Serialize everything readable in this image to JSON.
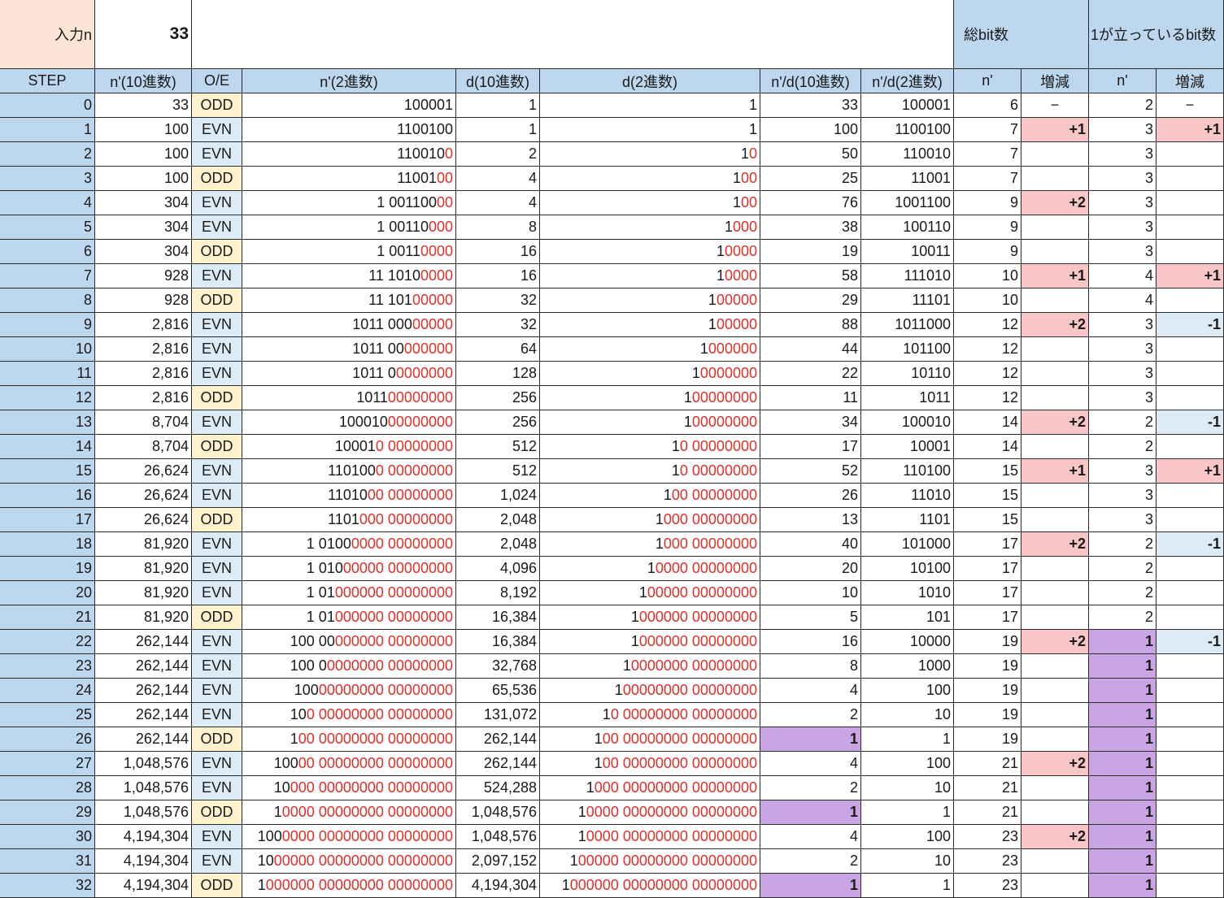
{
  "top": {
    "input_label": "入力n",
    "input_value": "33",
    "total_bits_header": "総bit数",
    "set_bits_header": "1が立っているbit数"
  },
  "headers": [
    "STEP",
    "n'(10進数)",
    "O/E",
    "n'(2進数)",
    "d(10進数)",
    "d(2進数)",
    "n'/d(10進数)",
    "n'/d(2進数)",
    "n'",
    "増減",
    "n'",
    "増減"
  ],
  "rows": [
    {
      "step": "0",
      "n10": "33",
      "oe": "ODD",
      "n2": [
        "100001",
        ""
      ],
      "d10": "1",
      "d2": [
        "1",
        ""
      ],
      "q10": "33",
      "q2": "100001",
      "tb": "6",
      "tbd": "−",
      "sb": "2",
      "sbd": "−"
    },
    {
      "step": "1",
      "n10": "100",
      "oe": "EVN",
      "n2": [
        "1100100",
        ""
      ],
      "d10": "1",
      "d2": [
        "1",
        ""
      ],
      "q10": "100",
      "q2": "1100100",
      "tb": "7",
      "tbd": "+1",
      "sb": "3",
      "sbd": "+1"
    },
    {
      "step": "2",
      "n10": "100",
      "oe": "EVN",
      "n2": [
        "110010",
        "0"
      ],
      "d10": "2",
      "d2": [
        "1",
        "0"
      ],
      "q10": "50",
      "q2": "110010",
      "tb": "7",
      "tbd": "",
      "sb": "3",
      "sbd": ""
    },
    {
      "step": "3",
      "n10": "100",
      "oe": "ODD",
      "n2": [
        "11001",
        "00"
      ],
      "d10": "4",
      "d2": [
        "1",
        "00"
      ],
      "q10": "25",
      "q2": "11001",
      "tb": "7",
      "tbd": "",
      "sb": "3",
      "sbd": ""
    },
    {
      "step": "4",
      "n10": "304",
      "oe": "EVN",
      "n2": [
        "1 001100",
        "00"
      ],
      "d10": "4",
      "d2": [
        "1",
        "00"
      ],
      "q10": "76",
      "q2": "1001100",
      "tb": "9",
      "tbd": "+2",
      "sb": "3",
      "sbd": ""
    },
    {
      "step": "5",
      "n10": "304",
      "oe": "EVN",
      "n2": [
        "1 00110",
        "000"
      ],
      "d10": "8",
      "d2": [
        "1",
        "000"
      ],
      "q10": "38",
      "q2": "100110",
      "tb": "9",
      "tbd": "",
      "sb": "3",
      "sbd": ""
    },
    {
      "step": "6",
      "n10": "304",
      "oe": "ODD",
      "n2": [
        "1 0011",
        "0000"
      ],
      "d10": "16",
      "d2": [
        "1",
        "0000"
      ],
      "q10": "19",
      "q2": "10011",
      "tb": "9",
      "tbd": "",
      "sb": "3",
      "sbd": ""
    },
    {
      "step": "7",
      "n10": "928",
      "oe": "EVN",
      "n2": [
        "11 1010",
        "0000"
      ],
      "d10": "16",
      "d2": [
        "1",
        "0000"
      ],
      "q10": "58",
      "q2": "111010",
      "tb": "10",
      "tbd": "+1",
      "sb": "4",
      "sbd": "+1"
    },
    {
      "step": "8",
      "n10": "928",
      "oe": "ODD",
      "n2": [
        "11 101",
        "00000"
      ],
      "d10": "32",
      "d2": [
        "1",
        "00000"
      ],
      "q10": "29",
      "q2": "11101",
      "tb": "10",
      "tbd": "",
      "sb": "4",
      "sbd": ""
    },
    {
      "step": "9",
      "n10": "2,816",
      "oe": "EVN",
      "n2": [
        "1011 000",
        "00000"
      ],
      "d10": "32",
      "d2": [
        "1",
        "00000"
      ],
      "q10": "88",
      "q2": "1011000",
      "tb": "12",
      "tbd": "+2",
      "sb": "3",
      "sbd": "-1"
    },
    {
      "step": "10",
      "n10": "2,816",
      "oe": "EVN",
      "n2": [
        "1011 00",
        "000000"
      ],
      "d10": "64",
      "d2": [
        "1",
        "000000"
      ],
      "q10": "44",
      "q2": "101100",
      "tb": "12",
      "tbd": "",
      "sb": "3",
      "sbd": ""
    },
    {
      "step": "11",
      "n10": "2,816",
      "oe": "EVN",
      "n2": [
        "1011 0",
        "0000000"
      ],
      "d10": "128",
      "d2": [
        "1",
        "0000000"
      ],
      "q10": "22",
      "q2": "10110",
      "tb": "12",
      "tbd": "",
      "sb": "3",
      "sbd": ""
    },
    {
      "step": "12",
      "n10": "2,816",
      "oe": "ODD",
      "n2": [
        "1011 ",
        "00000000"
      ],
      "d10": "256",
      "d2": [
        "1 ",
        "00000000"
      ],
      "q10": "11",
      "q2": "1011",
      "tb": "12",
      "tbd": "",
      "sb": "3",
      "sbd": ""
    },
    {
      "step": "13",
      "n10": "8,704",
      "oe": "EVN",
      "n2": [
        "100010 ",
        "00000000"
      ],
      "d10": "256",
      "d2": [
        "1 ",
        "00000000"
      ],
      "q10": "34",
      "q2": "100010",
      "tb": "14",
      "tbd": "+2",
      "sb": "2",
      "sbd": "-1"
    },
    {
      "step": "14",
      "n10": "8,704",
      "oe": "ODD",
      "n2": [
        "10001",
        "0 00000000"
      ],
      "d10": "512",
      "d2": [
        "1",
        "0 00000000"
      ],
      "q10": "17",
      "q2": "10001",
      "tb": "14",
      "tbd": "",
      "sb": "2",
      "sbd": ""
    },
    {
      "step": "15",
      "n10": "26,624",
      "oe": "EVN",
      "n2": [
        "110100",
        "0 00000000"
      ],
      "d10": "512",
      "d2": [
        "1",
        "0 00000000"
      ],
      "q10": "52",
      "q2": "110100",
      "tb": "15",
      "tbd": "+1",
      "sb": "3",
      "sbd": "+1"
    },
    {
      "step": "16",
      "n10": "26,624",
      "oe": "EVN",
      "n2": [
        "11010",
        "00 00000000"
      ],
      "d10": "1,024",
      "d2": [
        "1",
        "00 00000000"
      ],
      "q10": "26",
      "q2": "11010",
      "tb": "15",
      "tbd": "",
      "sb": "3",
      "sbd": ""
    },
    {
      "step": "17",
      "n10": "26,624",
      "oe": "ODD",
      "n2": [
        "1101",
        "000 00000000"
      ],
      "d10": "2,048",
      "d2": [
        "1",
        "000 00000000"
      ],
      "q10": "13",
      "q2": "1101",
      "tb": "15",
      "tbd": "",
      "sb": "3",
      "sbd": ""
    },
    {
      "step": "18",
      "n10": "81,920",
      "oe": "EVN",
      "n2": [
        "1 0100",
        "0000 00000000"
      ],
      "d10": "2,048",
      "d2": [
        "1",
        "000 00000000"
      ],
      "q10": "40",
      "q2": "101000",
      "tb": "17",
      "tbd": "+2",
      "sb": "2",
      "sbd": "-1"
    },
    {
      "step": "19",
      "n10": "81,920",
      "oe": "EVN",
      "n2": [
        "1 010",
        "00000 00000000"
      ],
      "d10": "4,096",
      "d2": [
        "1",
        "0000 00000000"
      ],
      "q10": "20",
      "q2": "10100",
      "tb": "17",
      "tbd": "",
      "sb": "2",
      "sbd": ""
    },
    {
      "step": "20",
      "n10": "81,920",
      "oe": "EVN",
      "n2": [
        "1 01",
        "000000 00000000"
      ],
      "d10": "8,192",
      "d2": [
        "1",
        "00000 00000000"
      ],
      "q10": "10",
      "q2": "1010",
      "tb": "17",
      "tbd": "",
      "sb": "2",
      "sbd": ""
    },
    {
      "step": "21",
      "n10": "81,920",
      "oe": "ODD",
      "n2": [
        "1 01",
        "000000 00000000"
      ],
      "d10": "16,384",
      "d2": [
        "1",
        "000000 00000000"
      ],
      "q10": "5",
      "q2": "101",
      "tb": "17",
      "tbd": "",
      "sb": "2",
      "sbd": ""
    },
    {
      "step": "22",
      "n10": "262,144",
      "oe": "EVN",
      "n2": [
        "100 00",
        "000000 00000000"
      ],
      "d10": "16,384",
      "d2": [
        "1",
        "000000 00000000"
      ],
      "q10": "16",
      "q2": "10000",
      "tb": "19",
      "tbd": "+2",
      "sb": "1",
      "sbd": "-1"
    },
    {
      "step": "23",
      "n10": "262,144",
      "oe": "EVN",
      "n2": [
        "100 0",
        "0000000 00000000"
      ],
      "d10": "32,768",
      "d2": [
        "1",
        "0000000 00000000"
      ],
      "q10": "8",
      "q2": "1000",
      "tb": "19",
      "tbd": "",
      "sb": "1",
      "sbd": ""
    },
    {
      "step": "24",
      "n10": "262,144",
      "oe": "EVN",
      "n2": [
        "100 ",
        "00000000 00000000"
      ],
      "d10": "65,536",
      "d2": [
        "1 ",
        "00000000 00000000"
      ],
      "q10": "4",
      "q2": "100",
      "tb": "19",
      "tbd": "",
      "sb": "1",
      "sbd": ""
    },
    {
      "step": "25",
      "n10": "262,144",
      "oe": "EVN",
      "n2": [
        "10",
        "0 00000000 00000000"
      ],
      "d10": "131,072",
      "d2": [
        "1",
        "0 00000000 00000000"
      ],
      "q10": "2",
      "q2": "10",
      "tb": "19",
      "tbd": "",
      "sb": "1",
      "sbd": ""
    },
    {
      "step": "26",
      "n10": "262,144",
      "oe": "ODD",
      "n2": [
        "1",
        "00 00000000 00000000"
      ],
      "d10": "262,144",
      "d2": [
        "1",
        "00 00000000 00000000"
      ],
      "q10": "1",
      "q2": "1",
      "tb": "19",
      "tbd": "",
      "sb": "1",
      "sbd": ""
    },
    {
      "step": "27",
      "n10": "1,048,576",
      "oe": "EVN",
      "n2": [
        "100",
        "00 00000000 00000000"
      ],
      "d10": "262,144",
      "d2": [
        "1",
        "00 00000000 00000000"
      ],
      "q10": "4",
      "q2": "100",
      "tb": "21",
      "tbd": "+2",
      "sb": "1",
      "sbd": ""
    },
    {
      "step": "28",
      "n10": "1,048,576",
      "oe": "EVN",
      "n2": [
        "10",
        "000 00000000 00000000"
      ],
      "d10": "524,288",
      "d2": [
        "1",
        "000 00000000 00000000"
      ],
      "q10": "2",
      "q2": "10",
      "tb": "21",
      "tbd": "",
      "sb": "1",
      "sbd": ""
    },
    {
      "step": "29",
      "n10": "1,048,576",
      "oe": "ODD",
      "n2": [
        "1",
        "0000 00000000 00000000"
      ],
      "d10": "1,048,576",
      "d2": [
        "1",
        "0000 00000000 00000000"
      ],
      "q10": "1",
      "q2": "1",
      "tb": "21",
      "tbd": "",
      "sb": "1",
      "sbd": ""
    },
    {
      "step": "30",
      "n10": "4,194,304",
      "oe": "EVN",
      "n2": [
        "100",
        "0000 00000000 00000000"
      ],
      "d10": "1,048,576",
      "d2": [
        "1",
        "0000 00000000 00000000"
      ],
      "q10": "4",
      "q2": "100",
      "tb": "23",
      "tbd": "+2",
      "sb": "1",
      "sbd": ""
    },
    {
      "step": "31",
      "n10": "4,194,304",
      "oe": "EVN",
      "n2": [
        "10",
        "00000 00000000 00000000"
      ],
      "d10": "2,097,152",
      "d2": [
        "1",
        "00000 00000000 00000000"
      ],
      "q10": "2",
      "q2": "10",
      "tb": "23",
      "tbd": "",
      "sb": "1",
      "sbd": ""
    },
    {
      "step": "32",
      "n10": "4,194,304",
      "oe": "ODD",
      "n2": [
        "1",
        "000000 00000000 00000000"
      ],
      "d10": "4,194,304",
      "d2": [
        "1",
        "000000 00000000 00000000"
      ],
      "q10": "1",
      "q2": "1",
      "tb": "23",
      "tbd": "",
      "sb": "1",
      "sbd": ""
    }
  ],
  "colors": {
    "header_blue": "#bdd7ee",
    "input_peach": "#fce4d6",
    "odd_yellow": "#fff2cc",
    "evn_blue": "#ddebf7",
    "increase_pink": "#f8c6c6",
    "decrease_blue": "#ddebf7",
    "highlight_purple": "#c9a5e4",
    "binary_zero_red": "#e0302a"
  }
}
